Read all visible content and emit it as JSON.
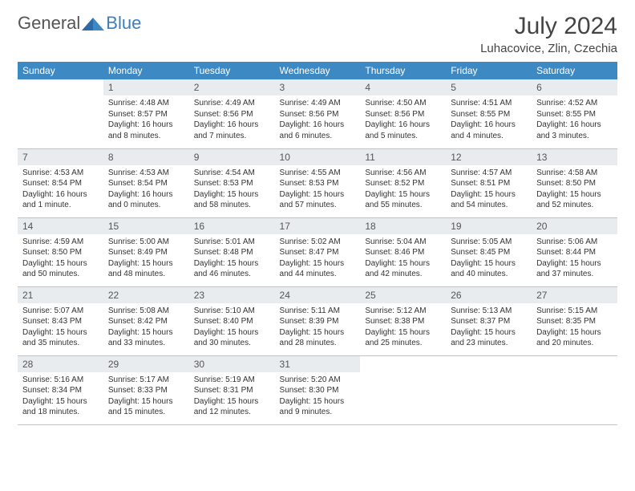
{
  "brand": {
    "part1": "General",
    "part2": "Blue"
  },
  "title": "July 2024",
  "location": "Luhacovice, Zlin, Czechia",
  "colors": {
    "header_bg": "#3d89c4",
    "header_text": "#ffffff",
    "daynum_bg": "#e8ecef",
    "border": "#b5c5d5",
    "text": "#333333",
    "brand_gray": "#555555",
    "brand_blue": "#3d7ebf"
  },
  "typography": {
    "body_fontsize": 11,
    "title_fontsize": 30,
    "location_fontsize": 15,
    "th_fontsize": 12,
    "cell_fontsize": 10
  },
  "day_names": [
    "Sunday",
    "Monday",
    "Tuesday",
    "Wednesday",
    "Thursday",
    "Friday",
    "Saturday"
  ],
  "weeks": [
    [
      {
        "n": "",
        "sr": "",
        "ss": "",
        "dl": ""
      },
      {
        "n": "1",
        "sr": "Sunrise: 4:48 AM",
        "ss": "Sunset: 8:57 PM",
        "dl": "Daylight: 16 hours and 8 minutes."
      },
      {
        "n": "2",
        "sr": "Sunrise: 4:49 AM",
        "ss": "Sunset: 8:56 PM",
        "dl": "Daylight: 16 hours and 7 minutes."
      },
      {
        "n": "3",
        "sr": "Sunrise: 4:49 AM",
        "ss": "Sunset: 8:56 PM",
        "dl": "Daylight: 16 hours and 6 minutes."
      },
      {
        "n": "4",
        "sr": "Sunrise: 4:50 AM",
        "ss": "Sunset: 8:56 PM",
        "dl": "Daylight: 16 hours and 5 minutes."
      },
      {
        "n": "5",
        "sr": "Sunrise: 4:51 AM",
        "ss": "Sunset: 8:55 PM",
        "dl": "Daylight: 16 hours and 4 minutes."
      },
      {
        "n": "6",
        "sr": "Sunrise: 4:52 AM",
        "ss": "Sunset: 8:55 PM",
        "dl": "Daylight: 16 hours and 3 minutes."
      }
    ],
    [
      {
        "n": "7",
        "sr": "Sunrise: 4:53 AM",
        "ss": "Sunset: 8:54 PM",
        "dl": "Daylight: 16 hours and 1 minute."
      },
      {
        "n": "8",
        "sr": "Sunrise: 4:53 AM",
        "ss": "Sunset: 8:54 PM",
        "dl": "Daylight: 16 hours and 0 minutes."
      },
      {
        "n": "9",
        "sr": "Sunrise: 4:54 AM",
        "ss": "Sunset: 8:53 PM",
        "dl": "Daylight: 15 hours and 58 minutes."
      },
      {
        "n": "10",
        "sr": "Sunrise: 4:55 AM",
        "ss": "Sunset: 8:53 PM",
        "dl": "Daylight: 15 hours and 57 minutes."
      },
      {
        "n": "11",
        "sr": "Sunrise: 4:56 AM",
        "ss": "Sunset: 8:52 PM",
        "dl": "Daylight: 15 hours and 55 minutes."
      },
      {
        "n": "12",
        "sr": "Sunrise: 4:57 AM",
        "ss": "Sunset: 8:51 PM",
        "dl": "Daylight: 15 hours and 54 minutes."
      },
      {
        "n": "13",
        "sr": "Sunrise: 4:58 AM",
        "ss": "Sunset: 8:50 PM",
        "dl": "Daylight: 15 hours and 52 minutes."
      }
    ],
    [
      {
        "n": "14",
        "sr": "Sunrise: 4:59 AM",
        "ss": "Sunset: 8:50 PM",
        "dl": "Daylight: 15 hours and 50 minutes."
      },
      {
        "n": "15",
        "sr": "Sunrise: 5:00 AM",
        "ss": "Sunset: 8:49 PM",
        "dl": "Daylight: 15 hours and 48 minutes."
      },
      {
        "n": "16",
        "sr": "Sunrise: 5:01 AM",
        "ss": "Sunset: 8:48 PM",
        "dl": "Daylight: 15 hours and 46 minutes."
      },
      {
        "n": "17",
        "sr": "Sunrise: 5:02 AM",
        "ss": "Sunset: 8:47 PM",
        "dl": "Daylight: 15 hours and 44 minutes."
      },
      {
        "n": "18",
        "sr": "Sunrise: 5:04 AM",
        "ss": "Sunset: 8:46 PM",
        "dl": "Daylight: 15 hours and 42 minutes."
      },
      {
        "n": "19",
        "sr": "Sunrise: 5:05 AM",
        "ss": "Sunset: 8:45 PM",
        "dl": "Daylight: 15 hours and 40 minutes."
      },
      {
        "n": "20",
        "sr": "Sunrise: 5:06 AM",
        "ss": "Sunset: 8:44 PM",
        "dl": "Daylight: 15 hours and 37 minutes."
      }
    ],
    [
      {
        "n": "21",
        "sr": "Sunrise: 5:07 AM",
        "ss": "Sunset: 8:43 PM",
        "dl": "Daylight: 15 hours and 35 minutes."
      },
      {
        "n": "22",
        "sr": "Sunrise: 5:08 AM",
        "ss": "Sunset: 8:42 PM",
        "dl": "Daylight: 15 hours and 33 minutes."
      },
      {
        "n": "23",
        "sr": "Sunrise: 5:10 AM",
        "ss": "Sunset: 8:40 PM",
        "dl": "Daylight: 15 hours and 30 minutes."
      },
      {
        "n": "24",
        "sr": "Sunrise: 5:11 AM",
        "ss": "Sunset: 8:39 PM",
        "dl": "Daylight: 15 hours and 28 minutes."
      },
      {
        "n": "25",
        "sr": "Sunrise: 5:12 AM",
        "ss": "Sunset: 8:38 PM",
        "dl": "Daylight: 15 hours and 25 minutes."
      },
      {
        "n": "26",
        "sr": "Sunrise: 5:13 AM",
        "ss": "Sunset: 8:37 PM",
        "dl": "Daylight: 15 hours and 23 minutes."
      },
      {
        "n": "27",
        "sr": "Sunrise: 5:15 AM",
        "ss": "Sunset: 8:35 PM",
        "dl": "Daylight: 15 hours and 20 minutes."
      }
    ],
    [
      {
        "n": "28",
        "sr": "Sunrise: 5:16 AM",
        "ss": "Sunset: 8:34 PM",
        "dl": "Daylight: 15 hours and 18 minutes."
      },
      {
        "n": "29",
        "sr": "Sunrise: 5:17 AM",
        "ss": "Sunset: 8:33 PM",
        "dl": "Daylight: 15 hours and 15 minutes."
      },
      {
        "n": "30",
        "sr": "Sunrise: 5:19 AM",
        "ss": "Sunset: 8:31 PM",
        "dl": "Daylight: 15 hours and 12 minutes."
      },
      {
        "n": "31",
        "sr": "Sunrise: 5:20 AM",
        "ss": "Sunset: 8:30 PM",
        "dl": "Daylight: 15 hours and 9 minutes."
      },
      {
        "n": "",
        "sr": "",
        "ss": "",
        "dl": ""
      },
      {
        "n": "",
        "sr": "",
        "ss": "",
        "dl": ""
      },
      {
        "n": "",
        "sr": "",
        "ss": "",
        "dl": ""
      }
    ]
  ]
}
